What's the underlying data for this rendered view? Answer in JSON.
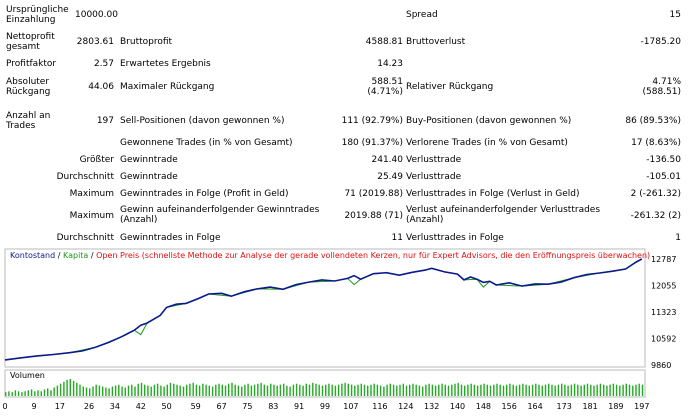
{
  "stats": {
    "initial_deposit": {
      "label": [
        "Ursprüngliche",
        "Einzahlung"
      ],
      "value": "10000.00"
    },
    "spread": {
      "label": "Spread",
      "value": "15"
    },
    "net_profit": {
      "label": [
        "Nettoprofit",
        "gesamt"
      ],
      "value": "2803.61"
    },
    "gross_profit": {
      "label": "Bruttoprofit",
      "value": "4588.81"
    },
    "gross_loss": {
      "label": "Bruttoverlust",
      "value": "-1785.20"
    },
    "profit_factor": {
      "label": "Profitfaktor",
      "value": "2.57"
    },
    "expected_payoff": {
      "label": "Erwartetes Ergebnis",
      "value": "14.23"
    },
    "absolute_drawdown": {
      "label": [
        "Absoluter",
        "Rückgang"
      ],
      "value": "44.06"
    },
    "max_drawdown": {
      "label": "Maximaler Rückgang",
      "value": [
        "588.51",
        "(4.71%)"
      ]
    },
    "relative_drawdown": {
      "label": "Relativer Rückgang",
      "value": [
        "4.71%",
        "(588.51)"
      ]
    },
    "total_trades": {
      "label": [
        "Anzahl an",
        "Trades"
      ],
      "value": "197"
    },
    "short_positions": {
      "label": "Sell-Positionen (davon gewonnen %)",
      "value": "111 (92.79%)"
    },
    "long_positions": {
      "label": "Buy-Positionen (davon gewonnen %)",
      "value": "86 (89.53%)"
    },
    "profit_trades": {
      "label": "Gewonnene Trades (in % von Gesamt)",
      "value": "180 (91.37%)"
    },
    "loss_trades": {
      "label": "Verlorene Trades (in % von Gesamt)",
      "value": "17 (8.63%)"
    },
    "largest": {
      "label": "Größter",
      "profit_label": "Gewinntrade",
      "profit_value": "241.40",
      "loss_label": "Verlusttrade",
      "loss_value": "-136.50"
    },
    "average": {
      "label": "Durchschnitt",
      "profit_label": "Gewinntrade",
      "profit_value": "25.49",
      "loss_label": "Verlusttrade",
      "loss_value": "-105.01"
    },
    "max_consecutive": {
      "label": "Maximum",
      "win_label": "Gewinntrades in Folge (Profit in Geld)",
      "win_value": "71 (2019.88)",
      "loss_label": "Verlusttrades in Folge (Verlust in Geld)",
      "loss_value": "2 (-261.32)"
    },
    "max_consecutive_profit": {
      "label": "Maximum",
      "win_label": [
        "Gewinn aufeinanderfolgender Gewinntrades",
        "(Anzahl)"
      ],
      "win_value": "2019.88 (71)",
      "loss_label": [
        "Verlust aufeinanderfolgender Verlusttrades",
        "(Anzahl)"
      ],
      "loss_value": "-261.32 (2)"
    },
    "avg_consecutive": {
      "label": "Durchschnitt",
      "win_label": "Gewinntrades in Folge",
      "win_value": "11",
      "loss_label": "Verlusttrades in Folge",
      "loss_value": "1"
    }
  },
  "chart_legend": {
    "balance": "Kontostand",
    "sep1": " / ",
    "equity": "Kapita",
    "sep2": " / ",
    "note": "Open Preis (schnellste Methode zur Analyse der gerade vollendeten Kerzen, nur für Expert Advisors, die den Eröffnungspreis überwachen)"
  },
  "volume_label": "Volumen",
  "colors": {
    "balance": "#0a1a8c",
    "equity": "#1a9a1a",
    "note": "#e01010",
    "volume": "#22aa22",
    "grid": "#dddddd",
    "axis_text": "#000000"
  },
  "chart_data": {
    "type": "line",
    "y_ticks": [
      12787,
      12055,
      11323,
      10592,
      9860
    ],
    "ylim": [
      9860,
      12787
    ],
    "x_ticks": [
      0,
      9,
      17,
      26,
      34,
      42,
      50,
      59,
      67,
      75,
      83,
      91,
      99,
      107,
      116,
      124,
      132,
      140,
      148,
      156,
      164,
      173,
      181,
      189,
      197
    ],
    "xlim": [
      0,
      198
    ],
    "series": [
      {
        "name": "Kontostand",
        "x": [
          0,
          5,
          10,
          15,
          20,
          24,
          28,
          32,
          36,
          40,
          42,
          44,
          48,
          50,
          53,
          56,
          60,
          63,
          67,
          70,
          74,
          78,
          82,
          86,
          90,
          94,
          98,
          102,
          106,
          108,
          110,
          114,
          118,
          122,
          126,
          130,
          132,
          136,
          140,
          142,
          144,
          146,
          148,
          150,
          152,
          156,
          160,
          164,
          168,
          172,
          176,
          180,
          184,
          188,
          192,
          195,
          197
        ],
        "y": [
          10000,
          10060,
          10110,
          10150,
          10200,
          10250,
          10350,
          10480,
          10640,
          10820,
          10960,
          11020,
          11230,
          11450,
          11540,
          11560,
          11700,
          11820,
          11840,
          11760,
          11880,
          11960,
          12010,
          11950,
          12080,
          12150,
          12210,
          12180,
          12250,
          12330,
          12230,
          12380,
          12410,
          12340,
          12420,
          12480,
          12530,
          12430,
          12370,
          12210,
          12290,
          12230,
          12140,
          12170,
          12070,
          12130,
          12040,
          12100,
          12090,
          12150,
          12270,
          12360,
          12400,
          12450,
          12510,
          12690,
          12787
        ]
      },
      {
        "name": "Kapita",
        "x": [
          0,
          10,
          20,
          28,
          36,
          40,
          42,
          44,
          48,
          50,
          56,
          63,
          70,
          78,
          86,
          94,
          102,
          106,
          108,
          110,
          114,
          118,
          122,
          126,
          130,
          132,
          136,
          140,
          142,
          146,
          148,
          150,
          152,
          160,
          168,
          176,
          184,
          192,
          197
        ],
        "y": [
          10000,
          10110,
          10200,
          10350,
          10640,
          10820,
          10700,
          11020,
          11230,
          11450,
          11560,
          11820,
          11760,
          11960,
          11950,
          12150,
          12180,
          12250,
          12080,
          12230,
          12380,
          12410,
          12340,
          12420,
          12480,
          12530,
          12430,
          12370,
          12210,
          12230,
          12010,
          12170,
          12070,
          12040,
          12090,
          12270,
          12400,
          12510,
          12787
        ]
      }
    ],
    "volume": [
      4,
      5,
      4,
      6,
      5,
      4,
      5,
      6,
      7,
      5,
      6,
      5,
      7,
      8,
      6,
      9,
      11,
      13,
      15,
      17,
      18,
      16,
      14,
      12,
      10,
      9,
      8,
      10,
      12,
      11,
      10,
      9,
      8,
      10,
      11,
      12,
      10,
      9,
      11,
      12,
      10,
      13,
      14,
      12,
      11,
      10,
      12,
      13,
      11,
      10,
      12,
      14,
      13,
      12,
      11,
      10,
      12,
      13,
      14,
      12,
      11,
      13,
      12,
      11,
      10,
      12,
      13,
      12,
      11,
      13,
      14,
      12,
      11,
      10,
      12,
      13,
      11,
      12,
      13,
      14,
      12,
      11,
      13,
      12,
      11,
      12,
      13,
      11,
      10,
      12,
      13,
      12,
      11,
      13,
      12,
      14,
      13,
      12,
      11,
      12,
      13,
      12,
      11,
      12,
      13,
      14,
      13,
      12,
      11,
      12,
      13,
      12,
      11,
      12,
      13,
      12,
      11,
      10,
      12,
      13,
      12,
      11,
      12,
      13,
      11,
      12,
      13,
      12,
      11,
      10,
      12,
      13,
      12,
      11,
      12,
      13,
      12,
      11,
      12,
      13,
      14,
      12,
      11,
      12,
      13,
      12,
      11,
      12,
      13,
      12,
      11,
      12,
      13,
      12,
      11,
      12,
      13,
      12,
      11,
      12,
      13,
      12,
      11,
      12,
      13,
      12,
      11,
      12,
      13,
      12,
      11,
      12,
      13,
      12,
      11,
      12,
      13,
      12,
      11,
      12,
      13,
      12,
      11,
      12,
      13,
      12,
      11,
      12,
      13,
      12,
      11,
      12,
      13,
      12,
      11,
      12,
      13,
      12
    ]
  }
}
